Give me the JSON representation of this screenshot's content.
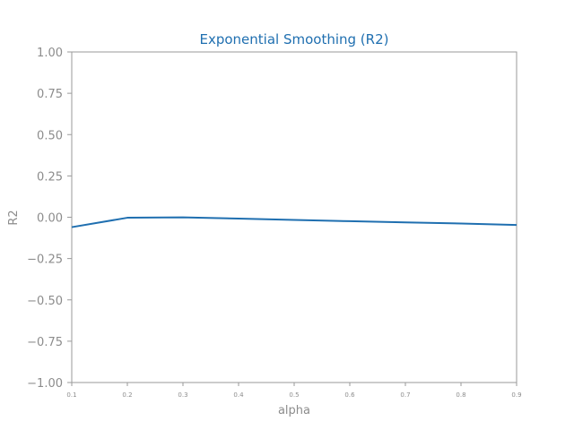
{
  "chart_data": {
    "type": "line",
    "title": "Exponential Smoothing (R2)",
    "xlabel": "alpha",
    "ylabel": "R2",
    "x": [
      0.1,
      0.2,
      0.3,
      0.4,
      0.5,
      0.6,
      0.7,
      0.8,
      0.9
    ],
    "x_tick_labels": [
      "0.1",
      "0.2",
      "0.3",
      "0.4",
      "0.5",
      "0.6",
      "0.7",
      "0.8",
      "0.9"
    ],
    "y_ticks": [
      1.0,
      0.75,
      0.5,
      0.25,
      0.0,
      -0.25,
      -0.5,
      -0.75,
      -1.0
    ],
    "y_tick_labels": [
      "1.00",
      "0.75",
      "0.50",
      "0.25",
      "0.00",
      "−0.25",
      "−0.50",
      "−0.75",
      "−1.00"
    ],
    "series": [
      {
        "values": [
          -0.06,
          -0.003,
          -0.001,
          -0.008,
          -0.016,
          -0.024,
          -0.031,
          -0.038,
          -0.047
        ],
        "color": "#1f6fb0"
      }
    ],
    "xlim": [
      0.1,
      0.9
    ],
    "ylim": [
      -1.0,
      1.0
    ],
    "grid": false,
    "colors": {
      "title": "#1f6fb0",
      "axis": "#8c8c8c",
      "line": "#1f6fb0"
    }
  }
}
